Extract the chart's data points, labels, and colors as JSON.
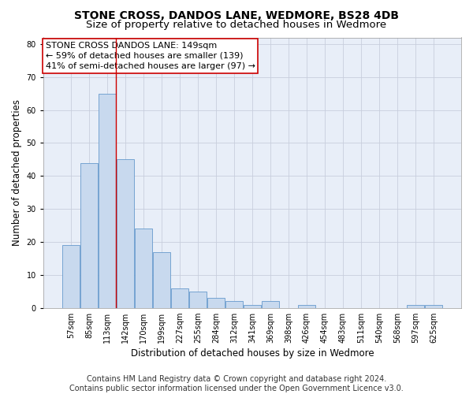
{
  "title": "STONE CROSS, DANDOS LANE, WEDMORE, BS28 4DB",
  "subtitle": "Size of property relative to detached houses in Wedmore",
  "xlabel": "Distribution of detached houses by size in Wedmore",
  "ylabel": "Number of detached properties",
  "categories": [
    "57sqm",
    "85sqm",
    "113sqm",
    "142sqm",
    "170sqm",
    "199sqm",
    "227sqm",
    "255sqm",
    "284sqm",
    "312sqm",
    "341sqm",
    "369sqm",
    "398sqm",
    "426sqm",
    "454sqm",
    "483sqm",
    "511sqm",
    "540sqm",
    "568sqm",
    "597sqm",
    "625sqm"
  ],
  "values": [
    19,
    44,
    65,
    45,
    24,
    17,
    6,
    5,
    3,
    2,
    1,
    2,
    0,
    1,
    0,
    0,
    0,
    0,
    0,
    1,
    1
  ],
  "bar_color": "#c8d9ee",
  "bar_edge_color": "#6699cc",
  "grid_color": "#c8cedd",
  "background_color": "#e8eef8",
  "annotation_line1": "STONE CROSS DANDOS LANE: 149sqm",
  "annotation_line2": "← 59% of detached houses are smaller (139)",
  "annotation_line3": "41% of semi-detached houses are larger (97) →",
  "annotation_box_color": "#ffffff",
  "annotation_box_edge_color": "#cc0000",
  "vline_x_index": 2.5,
  "vline_color": "#cc0000",
  "ylim": [
    0,
    82
  ],
  "yticks": [
    0,
    10,
    20,
    30,
    40,
    50,
    60,
    70,
    80
  ],
  "footer_line1": "Contains HM Land Registry data © Crown copyright and database right 2024.",
  "footer_line2": "Contains public sector information licensed under the Open Government Licence v3.0.",
  "title_fontsize": 10,
  "subtitle_fontsize": 9.5,
  "xlabel_fontsize": 8.5,
  "ylabel_fontsize": 8.5,
  "tick_fontsize": 7,
  "footer_fontsize": 7,
  "annotation_fontsize": 8
}
